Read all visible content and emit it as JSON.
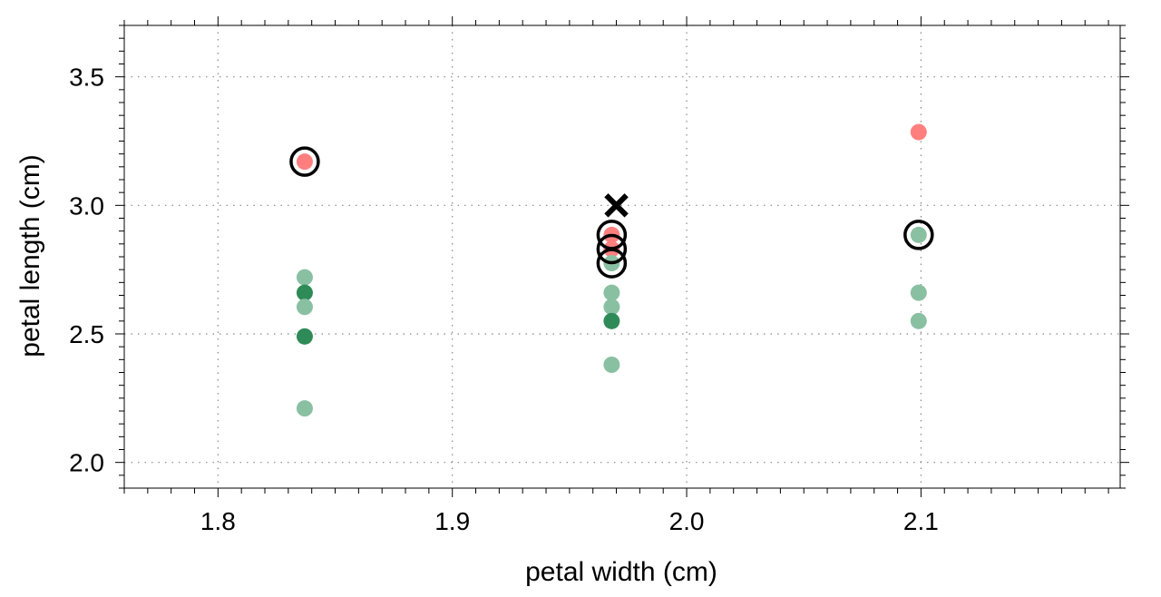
{
  "chart_data": {
    "type": "scatter",
    "title": "",
    "xlabel": "petal width (cm)",
    "ylabel": "petal length (cm)",
    "xlim": [
      1.76,
      2.185
    ],
    "ylim": [
      1.9,
      3.7
    ],
    "x_ticks": [
      1.8,
      1.9,
      2.0,
      2.1
    ],
    "x_tick_labels": [
      "1.8",
      "1.9",
      "2.0",
      "2.1"
    ],
    "y_ticks": [
      2.0,
      2.5,
      3.0,
      3.5
    ],
    "y_tick_labels": [
      "2.0",
      "2.5",
      "3.0",
      "3.5"
    ],
    "x_minor_step": 0.01,
    "y_minor_step": 0.05,
    "grid": true,
    "colors": {
      "red": "#ff7f7f",
      "green_light": "#8ac0a2",
      "green_dark": "#2e8b57",
      "marker": "#000000"
    },
    "points": [
      {
        "x": 1.837,
        "y": 3.17,
        "color": "red"
      },
      {
        "x": 1.837,
        "y": 2.72,
        "color": "green_light"
      },
      {
        "x": 1.837,
        "y": 2.66,
        "color": "green_dark"
      },
      {
        "x": 1.837,
        "y": 2.605,
        "color": "green_light"
      },
      {
        "x": 1.837,
        "y": 2.49,
        "color": "green_dark"
      },
      {
        "x": 1.837,
        "y": 2.21,
        "color": "green_light"
      },
      {
        "x": 1.968,
        "y": 2.885,
        "color": "red"
      },
      {
        "x": 1.968,
        "y": 2.83,
        "color": "red"
      },
      {
        "x": 1.968,
        "y": 2.775,
        "color": "green_light"
      },
      {
        "x": 1.968,
        "y": 2.66,
        "color": "green_light"
      },
      {
        "x": 1.968,
        "y": 2.605,
        "color": "green_light"
      },
      {
        "x": 1.968,
        "y": 2.55,
        "color": "green_dark"
      },
      {
        "x": 1.968,
        "y": 2.38,
        "color": "green_light"
      },
      {
        "x": 2.099,
        "y": 3.285,
        "color": "red"
      },
      {
        "x": 2.099,
        "y": 2.885,
        "color": "green_light"
      },
      {
        "x": 2.099,
        "y": 2.66,
        "color": "green_light"
      },
      {
        "x": 2.099,
        "y": 2.55,
        "color": "green_light"
      }
    ],
    "highlight_circles": [
      {
        "x": 1.837,
        "y": 3.17
      },
      {
        "x": 1.968,
        "y": 2.885
      },
      {
        "x": 1.968,
        "y": 2.83
      },
      {
        "x": 1.968,
        "y": 2.775
      },
      {
        "x": 2.099,
        "y": 2.885
      }
    ],
    "query_point": {
      "x": 1.97,
      "y": 3.0,
      "marker": "x"
    }
  }
}
